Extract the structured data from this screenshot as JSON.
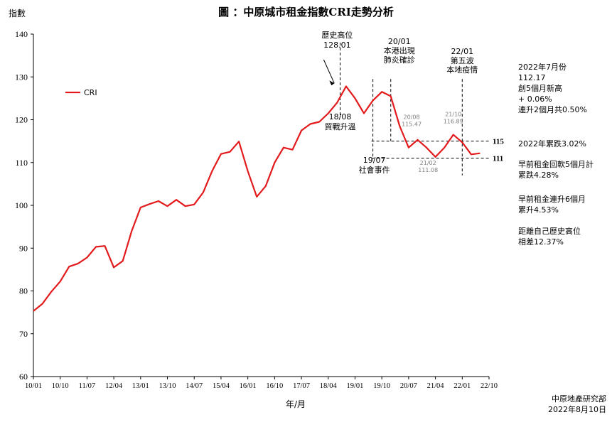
{
  "chart_title": "圖 ：中原城市租金指數CRI走勢分析",
  "ylabel": "指數",
  "xlabel": "年/月",
  "source": "中原地產研究部\n2022年8月10日",
  "colors": {
    "series": "#e31a1c",
    "axis": "#000000",
    "annotation": "#000000",
    "minor_label": "#808080"
  },
  "side_notes": [
    "2022年7月份\n112.17\n創5個月新高\n+ 0.06%\n連升2個月共0.50%",
    "2022年累跌3.02%",
    "早前租金回軟5個月計\n累跌4.28%",
    "早前租金連升6個月\n累升4.53%",
    "距離自己歷史高位\n相差12.37%"
  ],
  "annotations": {
    "peak": "歷史高位\n128.01",
    "trade_war": "18/08\n貿戰升溫",
    "social": "19/07\n社會事件",
    "covid": "20/01\n本港出現\n肺炎確診",
    "fifth_wave": "22/01\n第五波\n本地疫情",
    "p2008": "20/08\n115.47",
    "p2110": "21/10\n116.89",
    "p2102": "21/02\n111.08",
    "ref115": "115",
    "ref111": "111"
  },
  "chart_data": {
    "type": "line",
    "series": [
      {
        "name": "CRI",
        "x": [
          "10/01",
          "10/04",
          "10/07",
          "10/10",
          "11/01",
          "11/04",
          "11/07",
          "11/10",
          "12/01",
          "12/04",
          "12/07",
          "12/10",
          "13/01",
          "13/04",
          "13/07",
          "13/10",
          "14/01",
          "14/04",
          "14/07",
          "14/10",
          "15/01",
          "15/04",
          "15/07",
          "15/10",
          "16/01",
          "16/04",
          "16/07",
          "16/10",
          "17/01",
          "17/04",
          "17/07",
          "17/10",
          "18/01",
          "18/04",
          "18/07",
          "18/10",
          "19/01",
          "19/04",
          "19/07",
          "19/10",
          "20/01",
          "20/04",
          "20/07",
          "20/10",
          "21/01",
          "21/04",
          "21/07",
          "21/10",
          "22/01",
          "22/04",
          "22/07"
        ],
        "values": [
          75.3,
          77.0,
          79.8,
          82.2,
          85.7,
          86.4,
          87.8,
          90.3,
          90.5,
          85.5,
          87.0,
          94.0,
          99.5,
          100.3,
          101.0,
          99.8,
          101.3,
          99.8,
          100.2,
          103.0,
          108.0,
          112.0,
          112.5,
          114.9,
          108.0,
          102.0,
          104.5,
          110.0,
          113.5,
          113.0,
          117.5,
          119.0,
          119.5,
          121.5,
          124.0,
          127.8,
          125.0,
          121.5,
          124.5,
          126.5,
          125.5,
          118.5,
          113.5,
          115.3,
          113.5,
          111.3,
          113.5,
          116.5,
          114.7,
          111.9,
          112.17
        ]
      }
    ],
    "xticks": [
      "10/01",
      "10/10",
      "11/07",
      "12/04",
      "13/01",
      "13/10",
      "14/07",
      "15/04",
      "16/01",
      "16/10",
      "17/07",
      "18/04",
      "19/01",
      "19/10",
      "20/07",
      "21/04",
      "22/01",
      "22/10"
    ],
    "xlim": [
      "10/01",
      "22/10"
    ],
    "yticks": [
      60,
      70,
      80,
      90,
      100,
      110,
      120,
      130,
      140
    ],
    "ylim": [
      60,
      140
    ],
    "reference_lines": [
      115,
      111
    ],
    "event_lines": [
      "18/08",
      "19/07",
      "20/01",
      "22/01"
    ],
    "legend": "top-left",
    "grid": false
  }
}
